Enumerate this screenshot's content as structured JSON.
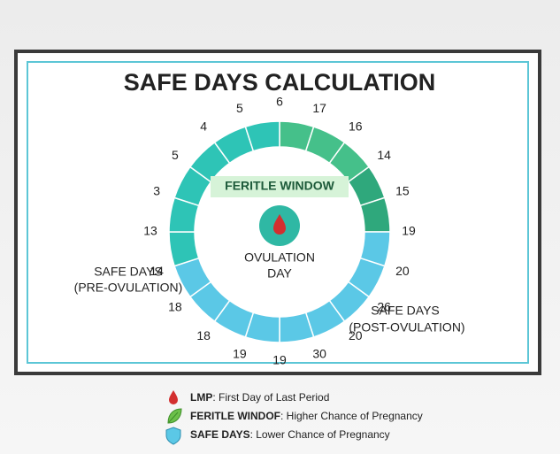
{
  "title": "SAFE DAYS CALCULATION",
  "ring_labels": [
    6,
    17,
    16,
    14,
    15,
    19,
    20,
    26,
    20,
    30,
    19,
    19,
    18,
    18,
    14,
    13,
    3,
    5,
    4,
    5
  ],
  "fertile_window": "FERITLE WINDOW",
  "center": {
    "line1": "OVULATION",
    "line2": "DAY"
  },
  "pre": {
    "title": "SAFE DAYS",
    "subtitle": "(PRE-OVULATION)"
  },
  "post": {
    "title": "SAFE DAYS",
    "subtitle": "(POST-OVULATION)"
  },
  "legend": [
    {
      "term": "LMP",
      "text": ": First Day of Last Period"
    },
    {
      "term": "FERITLE WINDOF",
      "text": ": Higher Chance of Pregnancy"
    },
    {
      "term": "SAFE DAYS",
      "text": ": Lower Chance of Pregnancy"
    }
  ]
}
